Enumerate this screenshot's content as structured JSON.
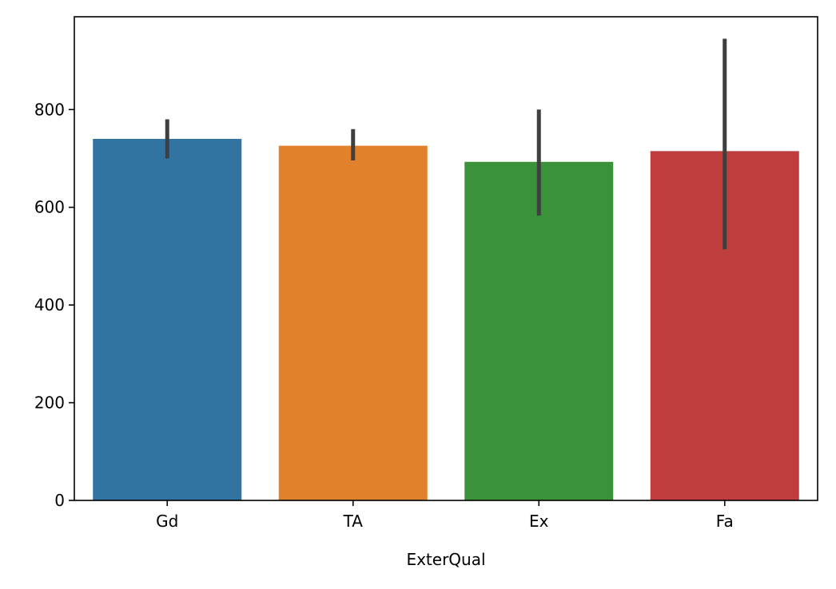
{
  "chart_data": {
    "type": "bar",
    "categories": [
      "Gd",
      "TA",
      "Ex",
      "Fa"
    ],
    "values": [
      740,
      726,
      693,
      715
    ],
    "error_low": [
      700,
      696,
      583,
      514
    ],
    "error_high": [
      780,
      760,
      800,
      945
    ],
    "colors": [
      "#3274a1",
      "#e1812c",
      "#3a923a",
      "#c03d3e"
    ],
    "error_color": "#3f3f3f",
    "xlabel": "ExterQual",
    "ylabel": "",
    "title": "",
    "ylim": [
      0,
      990
    ],
    "yticks": [
      0,
      200,
      400,
      600,
      800
    ],
    "ytick_labels": [
      "0",
      "200",
      "400",
      "600",
      "800"
    ],
    "grid": false,
    "legend": "none"
  }
}
